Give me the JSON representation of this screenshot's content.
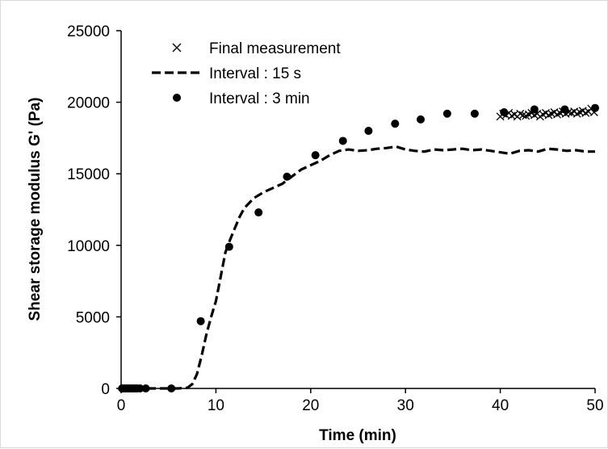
{
  "chart_data": {
    "type": "scatter",
    "title": "",
    "xlabel": "Time (min)",
    "ylabel": "Shear storage modulus G' (Pa)",
    "xlim": [
      0,
      50
    ],
    "ylim": [
      0,
      25000
    ],
    "xticks": [
      0,
      10,
      20,
      30,
      40,
      50
    ],
    "yticks": [
      0,
      5000,
      10000,
      15000,
      20000,
      25000
    ],
    "grid": false,
    "legend_position": "top-left",
    "colors": {
      "ink": "#000000",
      "background": "#ffffff",
      "frame": "#d9d9d9"
    },
    "series": [
      {
        "name": "Final measurement",
        "style": "cross-markers",
        "x": [
          40.0,
          40.3,
          40.6,
          40.9,
          41.2,
          41.5,
          41.8,
          42.1,
          42.4,
          42.7,
          43.0,
          43.3,
          43.6,
          43.9,
          44.2,
          44.5,
          44.8,
          45.1,
          45.4,
          45.7,
          46.0,
          46.3,
          46.6,
          46.9,
          47.2,
          47.5,
          47.8,
          48.1,
          48.4,
          48.7,
          49.0,
          49.3,
          49.6,
          49.9
        ],
        "y": [
          19000,
          19200,
          19100,
          19250,
          19050,
          19150,
          19000,
          19200,
          19100,
          19050,
          19150,
          19250,
          19100,
          19200,
          19000,
          19150,
          19250,
          19100,
          19200,
          19300,
          19150,
          19250,
          19350,
          19200,
          19300,
          19250,
          19350,
          19200,
          19300,
          19400,
          19250,
          19350,
          19550,
          19300
        ]
      },
      {
        "name": "Interval : 15 s",
        "style": "dashed-line",
        "x": [
          0,
          2,
          4,
          6,
          7,
          7.5,
          8,
          8.5,
          9,
          9.5,
          10,
          10.5,
          11,
          11.5,
          12,
          12.5,
          13,
          14,
          15,
          16,
          17,
          18,
          19,
          20,
          21,
          22,
          23,
          24,
          25,
          26,
          27,
          28,
          29,
          30,
          31,
          32,
          33,
          34,
          35,
          36,
          37,
          38,
          39,
          40,
          41,
          42,
          43,
          44,
          45,
          46,
          47,
          48,
          49,
          50
        ],
        "y": [
          0,
          0,
          0,
          0,
          50,
          300,
          1000,
          2300,
          3800,
          5000,
          6100,
          7800,
          9500,
          10400,
          11200,
          12000,
          12600,
          13300,
          13700,
          14000,
          14300,
          14800,
          15300,
          15600,
          15900,
          16300,
          16600,
          16700,
          16600,
          16650,
          16750,
          16800,
          16900,
          16700,
          16600,
          16550,
          16700,
          16650,
          16700,
          16750,
          16650,
          16700,
          16600,
          16500,
          16400,
          16600,
          16650,
          16550,
          16750,
          16700,
          16600,
          16650,
          16550,
          16550
        ]
      },
      {
        "name": "Interval : 3 min",
        "style": "filled-circles",
        "x": [
          0.1,
          0.3,
          0.5,
          0.7,
          0.9,
          1.1,
          1.3,
          1.5,
          1.7,
          2.0,
          2.6,
          5.3,
          8.4,
          11.4,
          14.5,
          17.5,
          20.5,
          23.4,
          26.1,
          28.9,
          31.6,
          34.4,
          37.3,
          40.4,
          43.6,
          46.8,
          50.0
        ],
        "y": [
          0,
          0,
          0,
          0,
          0,
          0,
          0,
          0,
          0,
          0,
          0,
          0,
          4700,
          9900,
          12300,
          14800,
          16300,
          17300,
          18000,
          18500,
          18800,
          19200,
          19200,
          19300,
          19500,
          19500,
          19600
        ]
      }
    ]
  }
}
